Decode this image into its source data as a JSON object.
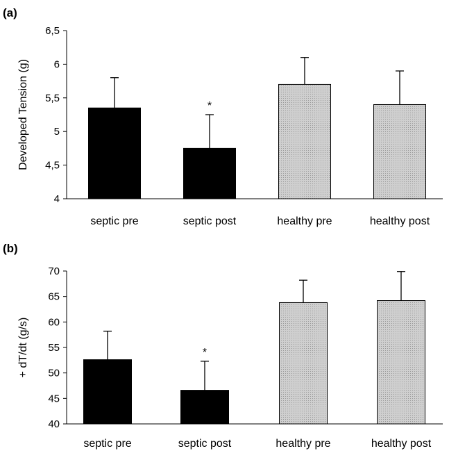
{
  "colors": {
    "septic": "#000000",
    "healthy": "#c9c9c9",
    "healthy_hatch": "#9a9a9a",
    "axis": "#000000"
  },
  "chart_data": [
    {
      "panel": "(a)",
      "type": "bar",
      "categories": [
        "septic pre",
        "septic post",
        "healthy pre",
        "healthy post"
      ],
      "values": [
        5.35,
        4.75,
        5.7,
        5.4
      ],
      "errors": [
        0.45,
        0.5,
        0.4,
        0.5
      ],
      "significance": [
        "",
        "*",
        "",
        ""
      ],
      "bar_colors": [
        "#000000",
        "#000000",
        "#c9c9c9",
        "#c9c9c9"
      ],
      "ylabel": "Developed Tension (g)",
      "ylim": [
        4,
        6.5
      ],
      "yticks": [
        4,
        4.5,
        5,
        5.5,
        6,
        6.5
      ],
      "ytick_labels": [
        "4",
        "4,5",
        "5",
        "5,5",
        "6",
        "6,5"
      ],
      "grid": false
    },
    {
      "panel": "(b)",
      "type": "bar",
      "categories": [
        "septic pre",
        "septic post",
        "healthy pre",
        "healthy post"
      ],
      "values": [
        52.6,
        46.6,
        63.8,
        64.2
      ],
      "errors": [
        5.6,
        5.7,
        4.4,
        5.7
      ],
      "significance": [
        "",
        "*",
        "",
        ""
      ],
      "bar_colors": [
        "#000000",
        "#000000",
        "#c9c9c9",
        "#c9c9c9"
      ],
      "ylabel": "+ dT/dt (g/s)",
      "ylim": [
        40,
        70
      ],
      "yticks": [
        40,
        45,
        50,
        55,
        60,
        65,
        70
      ],
      "ytick_labels": [
        "40",
        "45",
        "50",
        "55",
        "60",
        "65",
        "70"
      ],
      "grid": false
    }
  ]
}
